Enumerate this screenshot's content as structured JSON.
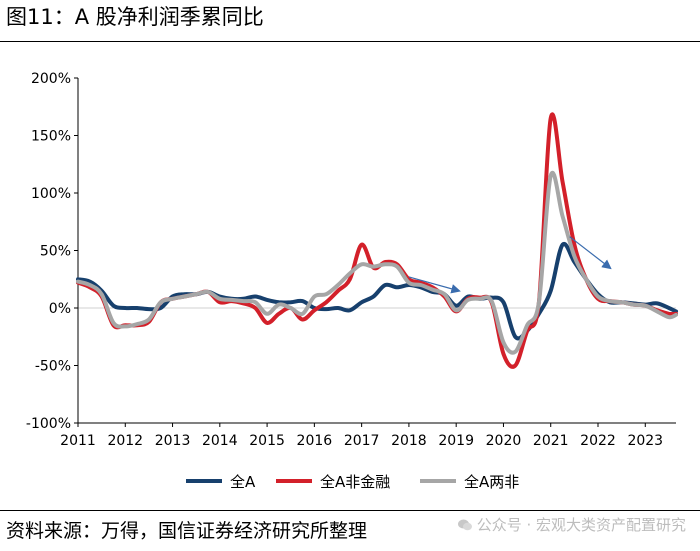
{
  "figure": {
    "title": "图11：A 股净利润季累同比",
    "source": "资料来源：万得，国信证券经济研究所整理",
    "watermark": "公众号 · 宏观大类资产配置研究"
  },
  "chart_data": {
    "type": "line",
    "title": "",
    "xlabel": "",
    "ylabel": "",
    "y_tick_labels": [
      "200%",
      "150%",
      "100%",
      "50%",
      "0%",
      "-50%",
      "-100%"
    ],
    "y_ticks": [
      200,
      150,
      100,
      50,
      0,
      -50,
      -100
    ],
    "ylim": [
      -100,
      200
    ],
    "x_tick_labels": [
      "2011",
      "2012",
      "2013",
      "2014",
      "2015",
      "2016",
      "2017",
      "2018",
      "2019",
      "2020",
      "2021",
      "2022",
      "2023"
    ],
    "x_ticks": [
      2011,
      2012,
      2013,
      2014,
      2015,
      2016,
      2017,
      2018,
      2019,
      2020,
      2021,
      2022,
      2023
    ],
    "xlim": [
      2011.0,
      2023.65
    ],
    "legend_position": "bottom",
    "grid": false,
    "colors": {
      "series_1": "#17406d",
      "series_2": "#d3202a",
      "series_3": "#a6a6a6",
      "arrow": "#3a6cae"
    },
    "series": [
      {
        "name": "全A",
        "color": "#17406d",
        "x": [
          2011.0,
          2011.25,
          2011.5,
          2011.75,
          2012.0,
          2012.25,
          2012.5,
          2012.75,
          2013.0,
          2013.25,
          2013.5,
          2013.75,
          2014.0,
          2014.25,
          2014.5,
          2014.75,
          2015.0,
          2015.25,
          2015.5,
          2015.75,
          2016.0,
          2016.25,
          2016.5,
          2016.75,
          2017.0,
          2017.25,
          2017.5,
          2017.75,
          2018.0,
          2018.25,
          2018.5,
          2018.75,
          2019.0,
          2019.25,
          2019.5,
          2019.75,
          2020.0,
          2020.25,
          2020.5,
          2020.75,
          2021.0,
          2021.25,
          2021.5,
          2021.75,
          2022.0,
          2022.25,
          2022.5,
          2022.75,
          2023.0,
          2023.25,
          2023.5,
          2023.65
        ],
        "y": [
          25,
          23,
          15,
          2,
          0,
          0,
          -1,
          0,
          10,
          12,
          12,
          14,
          10,
          8,
          8,
          10,
          7,
          5,
          5,
          6,
          0,
          -1,
          0,
          -2,
          5,
          10,
          20,
          18,
          20,
          18,
          14,
          12,
          2,
          10,
          8,
          9,
          5,
          -25,
          -20,
          -5,
          15,
          55,
          40,
          25,
          12,
          5,
          5,
          4,
          3,
          4,
          0,
          -3
        ]
      },
      {
        "name": "全A非金融",
        "color": "#d3202a",
        "x": [
          2011.0,
          2011.25,
          2011.5,
          2011.75,
          2012.0,
          2012.25,
          2012.5,
          2012.75,
          2013.0,
          2013.25,
          2013.5,
          2013.75,
          2014.0,
          2014.25,
          2014.5,
          2014.75,
          2015.0,
          2015.25,
          2015.5,
          2015.75,
          2016.0,
          2016.25,
          2016.5,
          2016.75,
          2017.0,
          2017.25,
          2017.5,
          2017.75,
          2018.0,
          2018.25,
          2018.5,
          2018.75,
          2019.0,
          2019.25,
          2019.5,
          2019.75,
          2020.0,
          2020.25,
          2020.5,
          2020.75,
          2021.0,
          2021.25,
          2021.5,
          2021.75,
          2022.0,
          2022.25,
          2022.5,
          2022.75,
          2023.0,
          2023.25,
          2023.5,
          2023.65
        ],
        "y": [
          22,
          18,
          10,
          -15,
          -15,
          -15,
          -12,
          5,
          8,
          10,
          12,
          14,
          5,
          6,
          4,
          0,
          -13,
          -5,
          0,
          -10,
          -2,
          5,
          15,
          25,
          55,
          35,
          40,
          38,
          25,
          22,
          18,
          10,
          -3,
          8,
          9,
          5,
          -40,
          -50,
          -20,
          5,
          165,
          110,
          55,
          25,
          8,
          6,
          5,
          3,
          2,
          -2,
          -5,
          -5
        ]
      },
      {
        "name": "全A两非",
        "color": "#a6a6a6",
        "x": [
          2011.0,
          2011.25,
          2011.5,
          2011.75,
          2012.0,
          2012.25,
          2012.5,
          2012.75,
          2013.0,
          2013.25,
          2013.5,
          2013.75,
          2014.0,
          2014.25,
          2014.5,
          2014.75,
          2015.0,
          2015.25,
          2015.5,
          2015.75,
          2016.0,
          2016.25,
          2016.5,
          2016.75,
          2017.0,
          2017.25,
          2017.5,
          2017.75,
          2018.0,
          2018.25,
          2018.5,
          2018.75,
          2019.0,
          2019.25,
          2019.5,
          2019.75,
          2020.0,
          2020.25,
          2020.5,
          2020.75,
          2021.0,
          2021.25,
          2021.5,
          2021.75,
          2022.0,
          2022.25,
          2022.5,
          2022.75,
          2023.0,
          2023.25,
          2023.5,
          2023.65
        ],
        "y": [
          23,
          20,
          12,
          -13,
          -16,
          -14,
          -10,
          5,
          8,
          10,
          12,
          14,
          8,
          7,
          6,
          5,
          -5,
          3,
          0,
          -5,
          10,
          12,
          20,
          30,
          38,
          36,
          38,
          36,
          22,
          20,
          16,
          12,
          -2,
          7,
          8,
          6,
          -30,
          -38,
          -15,
          5,
          115,
          80,
          45,
          25,
          10,
          6,
          5,
          3,
          2,
          -3,
          -8,
          -6
        ]
      }
    ],
    "annotations": [
      {
        "type": "arrow",
        "from": [
          2018.0,
          27
        ],
        "to": [
          2019.05,
          15
        ]
      },
      {
        "type": "arrow",
        "from": [
          2021.4,
          62
        ],
        "to": [
          2022.25,
          35
        ]
      }
    ]
  }
}
